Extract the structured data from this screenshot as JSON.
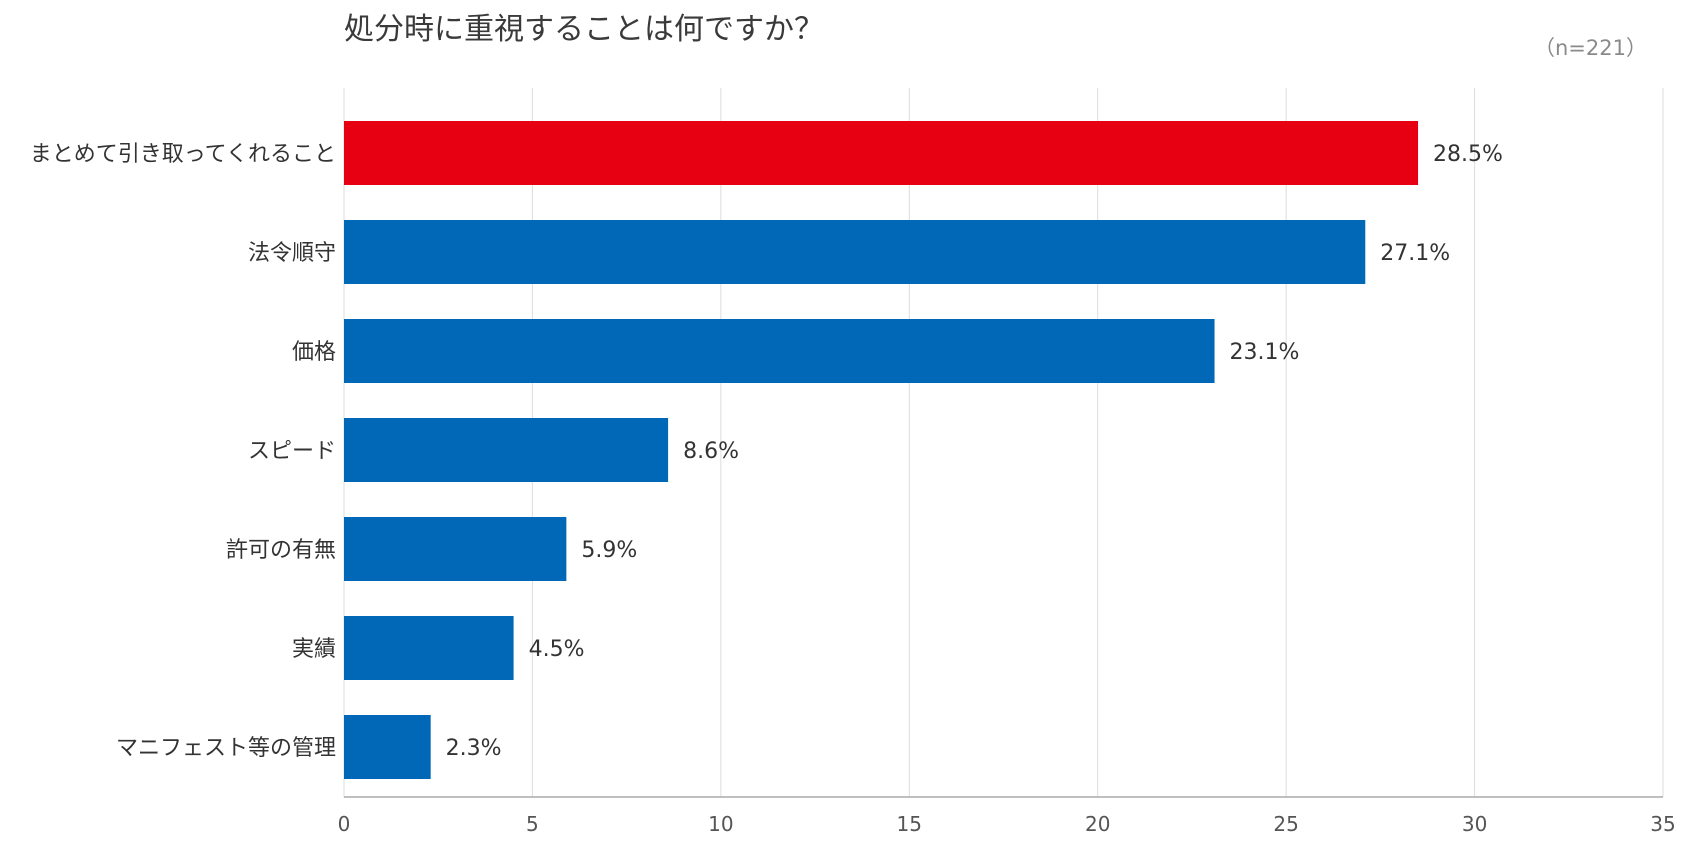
{
  "chart_data": {
    "type": "bar",
    "orientation": "horizontal",
    "title": "処分時に重視することは何ですか？",
    "sample_size": "（n=221）",
    "categories": [
      "まとめて引き取ってくれること",
      "法令順守",
      "価格",
      "スピード",
      "許可の有無",
      "実績",
      "マニフェスト等の管理"
    ],
    "values": [
      28.5,
      27.1,
      23.1,
      8.6,
      5.9,
      4.5,
      2.3
    ],
    "value_labels": [
      "28.5%",
      "27.1%",
      "23.1%",
      "8.6%",
      "5.9%",
      "4.5%",
      "2.3%"
    ],
    "highlight_index": 0,
    "xlim": [
      0,
      35
    ],
    "xticks": [
      0,
      5,
      10,
      15,
      20,
      25,
      30,
      35
    ],
    "grid": true,
    "colors": {
      "highlight": "#e60012",
      "bar": "#0068b7",
      "grid": "#dddddd",
      "axis": "#999999"
    }
  }
}
